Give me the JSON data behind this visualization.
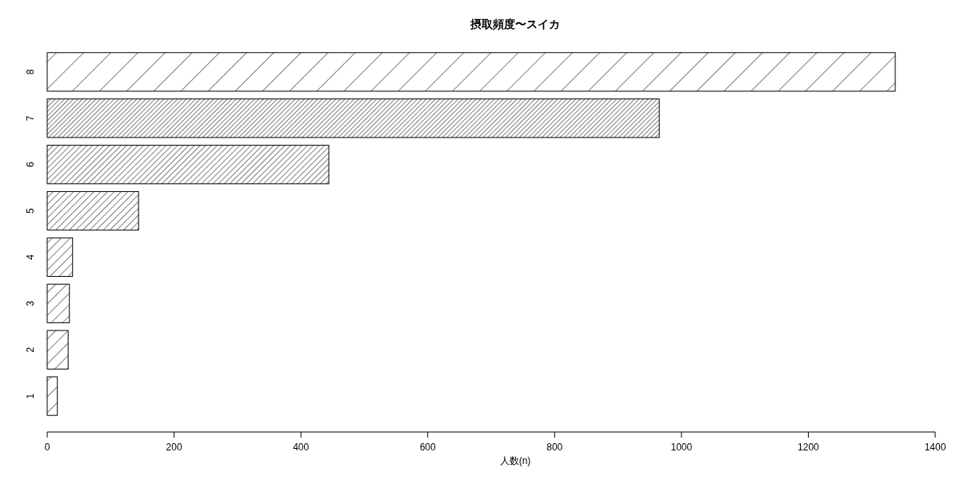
{
  "chart_data": {
    "type": "bar",
    "orientation": "horizontal",
    "title": "摂取頻度〜スイカ",
    "xlabel": "人数(n)",
    "categories": [
      "8",
      "7",
      "6",
      "5",
      "4",
      "3",
      "2",
      "1"
    ],
    "values": [
      1337,
      965,
      444,
      144,
      40,
      35,
      33,
      16
    ],
    "color": "#000000",
    "xlim": [
      0,
      1400
    ],
    "xticks": [
      0,
      200,
      400,
      600,
      800,
      1000,
      1200,
      1400
    ],
    "grid": false
  }
}
